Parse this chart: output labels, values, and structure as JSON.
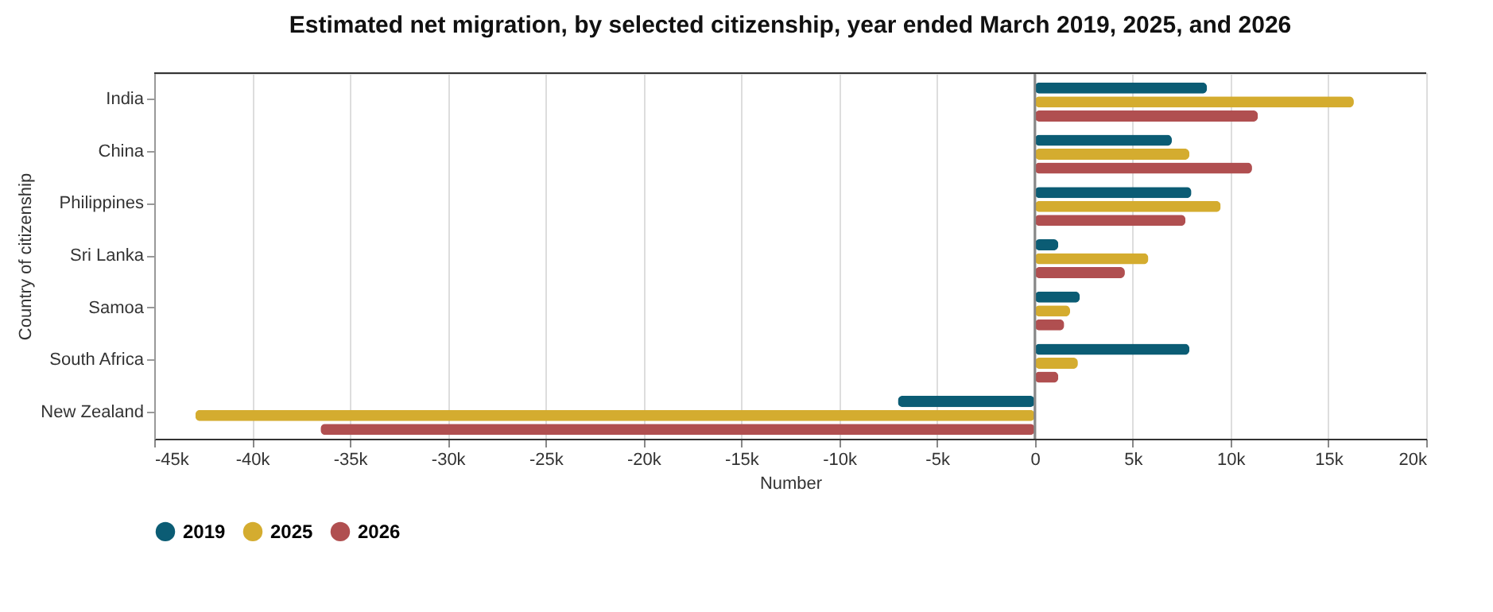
{
  "chart_data": {
    "type": "bar",
    "orientation": "horizontal",
    "title": "Estimated net migration, by selected citizenship, year ended March 2019, 2025, and 2026",
    "xlabel": "Number",
    "ylabel": "Country of citizenship",
    "categories": [
      "India",
      "China",
      "Philippines",
      "Sri Lanka",
      "Samoa",
      "South Africa",
      "New Zealand"
    ],
    "series": [
      {
        "name": "2019",
        "color": "#0b5c74",
        "values": [
          8800,
          7000,
          8000,
          1200,
          2300,
          7900,
          -7000
        ]
      },
      {
        "name": "2025",
        "color": "#d4ac2f",
        "values": [
          16300,
          7900,
          9500,
          5800,
          1800,
          2200,
          -42900
        ]
      },
      {
        "name": "2026",
        "color": "#b04f50",
        "values": [
          11400,
          11100,
          7700,
          4600,
          1500,
          1200,
          -36500
        ]
      }
    ],
    "xlim": [
      -45000,
      20000
    ],
    "xticks": [
      {
        "value": -45000,
        "label": "-45k"
      },
      {
        "value": -40000,
        "label": "-40k"
      },
      {
        "value": -35000,
        "label": "-35k"
      },
      {
        "value": -30000,
        "label": "-30k"
      },
      {
        "value": -25000,
        "label": "-25k"
      },
      {
        "value": -20000,
        "label": "-20k"
      },
      {
        "value": -15000,
        "label": "-15k"
      },
      {
        "value": -10000,
        "label": "-10k"
      },
      {
        "value": -5000,
        "label": "-5k"
      },
      0,
      {
        "value": 5000,
        "label": "5k"
      },
      {
        "value": 10000,
        "label": "10k"
      },
      {
        "value": 15000,
        "label": "15k"
      },
      {
        "value": 20000,
        "label": "20k"
      }
    ],
    "grid": "x",
    "legend": "bottom"
  }
}
